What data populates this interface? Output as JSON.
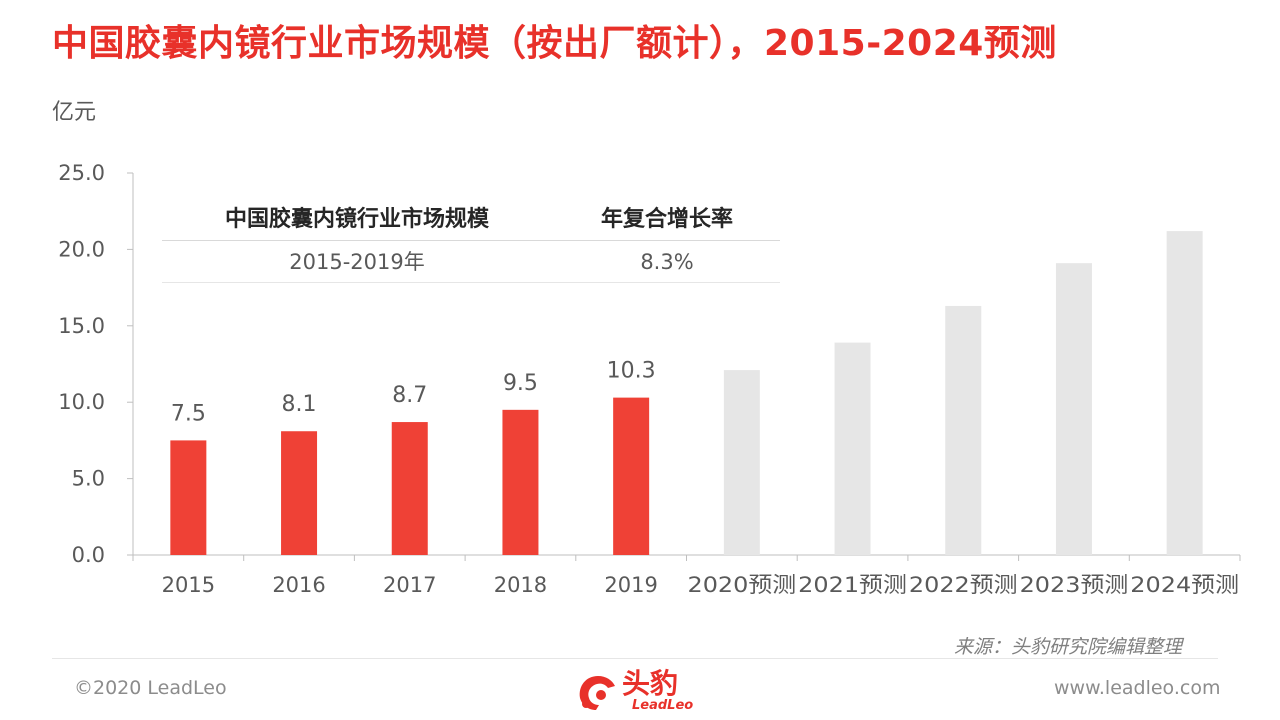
{
  "title": "中国胶囊内镜行业市场规模（按出厂额计），2015-2024预测",
  "unit": "亿元",
  "colors": {
    "accent": "#e8312a",
    "bar_actual": "#ef4136",
    "bar_forecast": "#e6e6e6"
  },
  "cagr_table": {
    "header_metric": "中国胶囊内镜行业市场规模",
    "header_rate": "年复合增长率",
    "period": "2015-2019年",
    "rate": "8.3%"
  },
  "chart_data": {
    "type": "bar",
    "title": "中国胶囊内镜行业市场规模（按出厂额计），2015-2024预测",
    "ylabel": "亿元",
    "xlabel": "",
    "ylim": [
      0,
      25
    ],
    "yticks": [
      "0.0",
      "5.0",
      "10.0",
      "15.0",
      "20.0",
      "25.0"
    ],
    "grid": false,
    "categories": [
      "2015",
      "2016",
      "2017",
      "2018",
      "2019",
      "2020预测",
      "2021预测",
      "2022预测",
      "2023预测",
      "2024预测"
    ],
    "values": [
      7.5,
      8.1,
      8.7,
      9.5,
      10.3,
      12.1,
      13.9,
      16.3,
      19.1,
      21.2
    ],
    "data_labels": [
      "7.5",
      "8.1",
      "8.7",
      "9.5",
      "10.3",
      "",
      "",
      "",
      "",
      ""
    ],
    "forecast_from_index": 5
  },
  "source": "来源：头豹研究院编辑整理",
  "footer": {
    "copyright": "©2020 LeadLeo",
    "website": "www.leadleo.com",
    "logo_cn": "头豹",
    "logo_en": "LeadLeo"
  }
}
